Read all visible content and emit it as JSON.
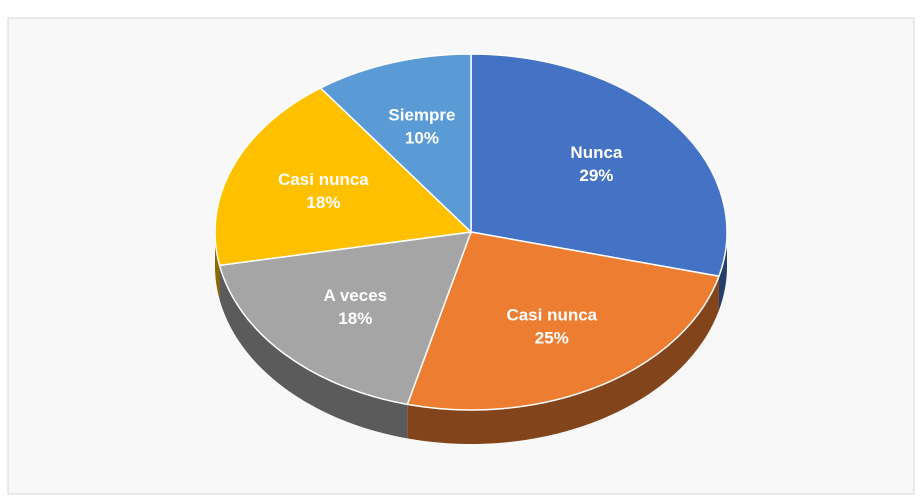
{
  "chart_data": {
    "type": "pie",
    "categories": [
      "Nunca",
      "Casi nunca",
      "A veces",
      "Casi nunca",
      "Siempre"
    ],
    "values": [
      29,
      25,
      18,
      18,
      10
    ],
    "value_labels": [
      "29%",
      "25%",
      "18%",
      "18%",
      "10%"
    ],
    "colors": [
      "#4472c4",
      "#ed7d31",
      "#a5a5a5",
      "#ffc000",
      "#5b9bd5"
    ]
  }
}
